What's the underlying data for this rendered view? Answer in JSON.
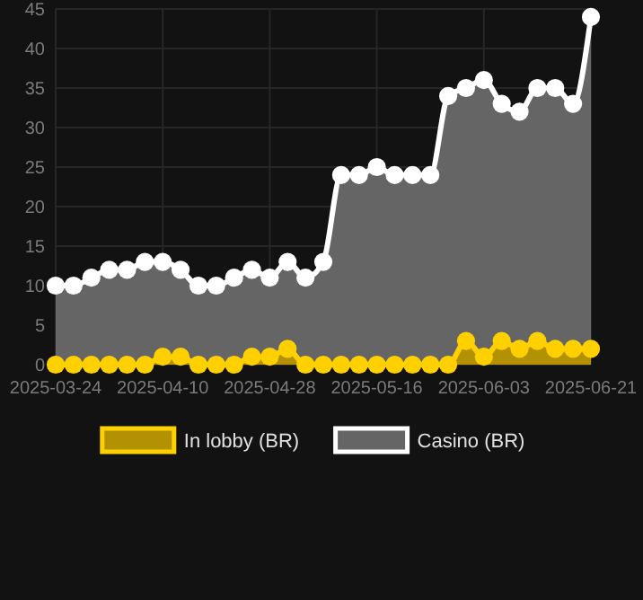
{
  "chart_data": {
    "type": "area",
    "categories": [
      "2025-03-24",
      null,
      null,
      null,
      null,
      null,
      "2025-04-10",
      null,
      null,
      null,
      null,
      null,
      "2025-04-28",
      null,
      null,
      null,
      null,
      null,
      "2025-05-16",
      null,
      null,
      null,
      null,
      null,
      "2025-06-03",
      null,
      null,
      null,
      null,
      null,
      "2025-06-21"
    ],
    "series": [
      {
        "name": "In lobby (BR)",
        "color": "#ffd000",
        "values": [
          0,
          0,
          0,
          0,
          0,
          0,
          1,
          1,
          0,
          0,
          0,
          1,
          1,
          2,
          0,
          0,
          0,
          0,
          0,
          0,
          0,
          0,
          0,
          3,
          1,
          3,
          2,
          3,
          2,
          2,
          2
        ]
      },
      {
        "name": "Casino (BR)",
        "color": "#ffffff",
        "values": [
          10,
          10,
          11,
          12,
          12,
          13,
          13,
          12,
          10,
          10,
          11,
          12,
          11,
          13,
          11,
          13,
          24,
          24,
          25,
          24,
          24,
          24,
          34,
          35,
          36,
          33,
          32,
          35,
          35,
          33,
          44
        ]
      }
    ],
    "ylim": [
      0,
      45
    ],
    "yticks": [
      0,
      5,
      10,
      15,
      20,
      25,
      30,
      35,
      40,
      45
    ],
    "grid": true,
    "legend": "bottom",
    "marker": "circle"
  }
}
